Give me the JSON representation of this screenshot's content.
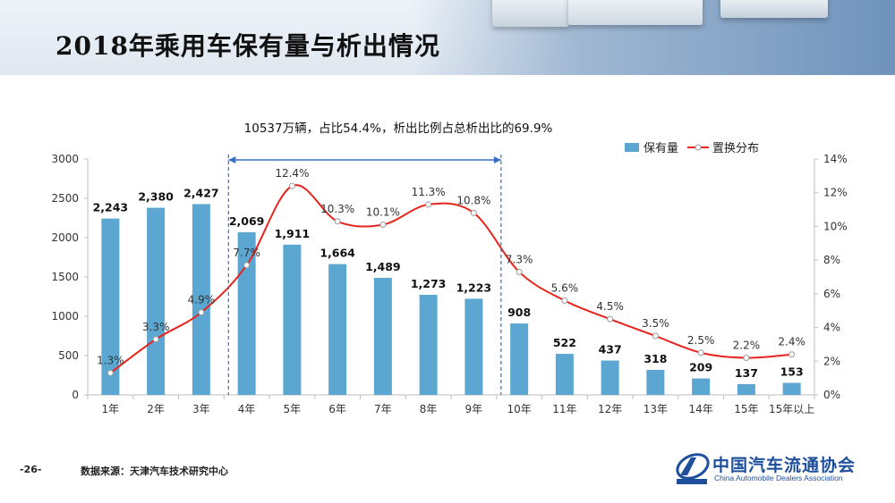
{
  "page": {
    "title": "2018年乘用车保有量与析出情况",
    "page_number": "-26-",
    "source": "数据来源：天津汽车技术研究中心"
  },
  "logo": {
    "name_cn": "中国汽车流通协会",
    "name_en": "China Automobile Dealers Association"
  },
  "chart_data": {
    "type": "bar",
    "title": "",
    "annotation": "10537万辆，占比54.4%，析出比例占总析出比的69.9%",
    "annotation_range": [
      "4年",
      "10年"
    ],
    "categories": [
      "1年",
      "2年",
      "3年",
      "4年",
      "5年",
      "6年",
      "7年",
      "8年",
      "9年",
      "10年",
      "11年",
      "12年",
      "13年",
      "14年",
      "15年",
      "15年以上"
    ],
    "series": [
      {
        "name": "保有量",
        "type": "bar",
        "axis": "left",
        "color": "#5ba7d1",
        "values": [
          2243,
          2380,
          2427,
          2069,
          1911,
          1664,
          1489,
          1273,
          1223,
          908,
          522,
          437,
          318,
          209,
          137,
          153
        ],
        "labels": [
          "2,243",
          "2,380",
          "2,427",
          "2,069",
          "1,911",
          "1,664",
          "1,489",
          "1,273",
          "1,223",
          "908",
          "522",
          "437",
          "318",
          "209",
          "137",
          "153"
        ]
      },
      {
        "name": "置换分布",
        "type": "line",
        "axis": "right",
        "color": "#e8231c",
        "values": [
          1.3,
          3.3,
          4.9,
          7.7,
          12.4,
          10.3,
          10.1,
          11.3,
          10.8,
          7.3,
          5.6,
          4.5,
          3.5,
          2.5,
          2.2,
          2.4
        ],
        "labels": [
          "1.3%",
          "3.3%",
          "4.9%",
          "7.7%",
          "12.4%",
          "10.3%",
          "10.1%",
          "11.3%",
          "10.8%",
          "7.3%",
          "5.6%",
          "4.5%",
          "3.5%",
          "2.5%",
          "2.2%",
          "2.4%"
        ]
      }
    ],
    "y_left": {
      "min": 0,
      "max": 3000,
      "ticks": [
        "0",
        "500",
        "1000",
        "1500",
        "2000",
        "2500",
        "3000"
      ]
    },
    "y_right": {
      "min": 0,
      "max": 14,
      "ticks": [
        "0%",
        "2%",
        "4%",
        "6%",
        "8%",
        "10%",
        "12%",
        "14%"
      ]
    },
    "grid": false,
    "legend_position": "top-right"
  },
  "colors": {
    "bar": "#5ba7d1",
    "line": "#e8231c",
    "marker_fill": "#ffffff",
    "marker_stroke": "#9a9a9a",
    "annotation_arrow": "#3a6fc4"
  }
}
